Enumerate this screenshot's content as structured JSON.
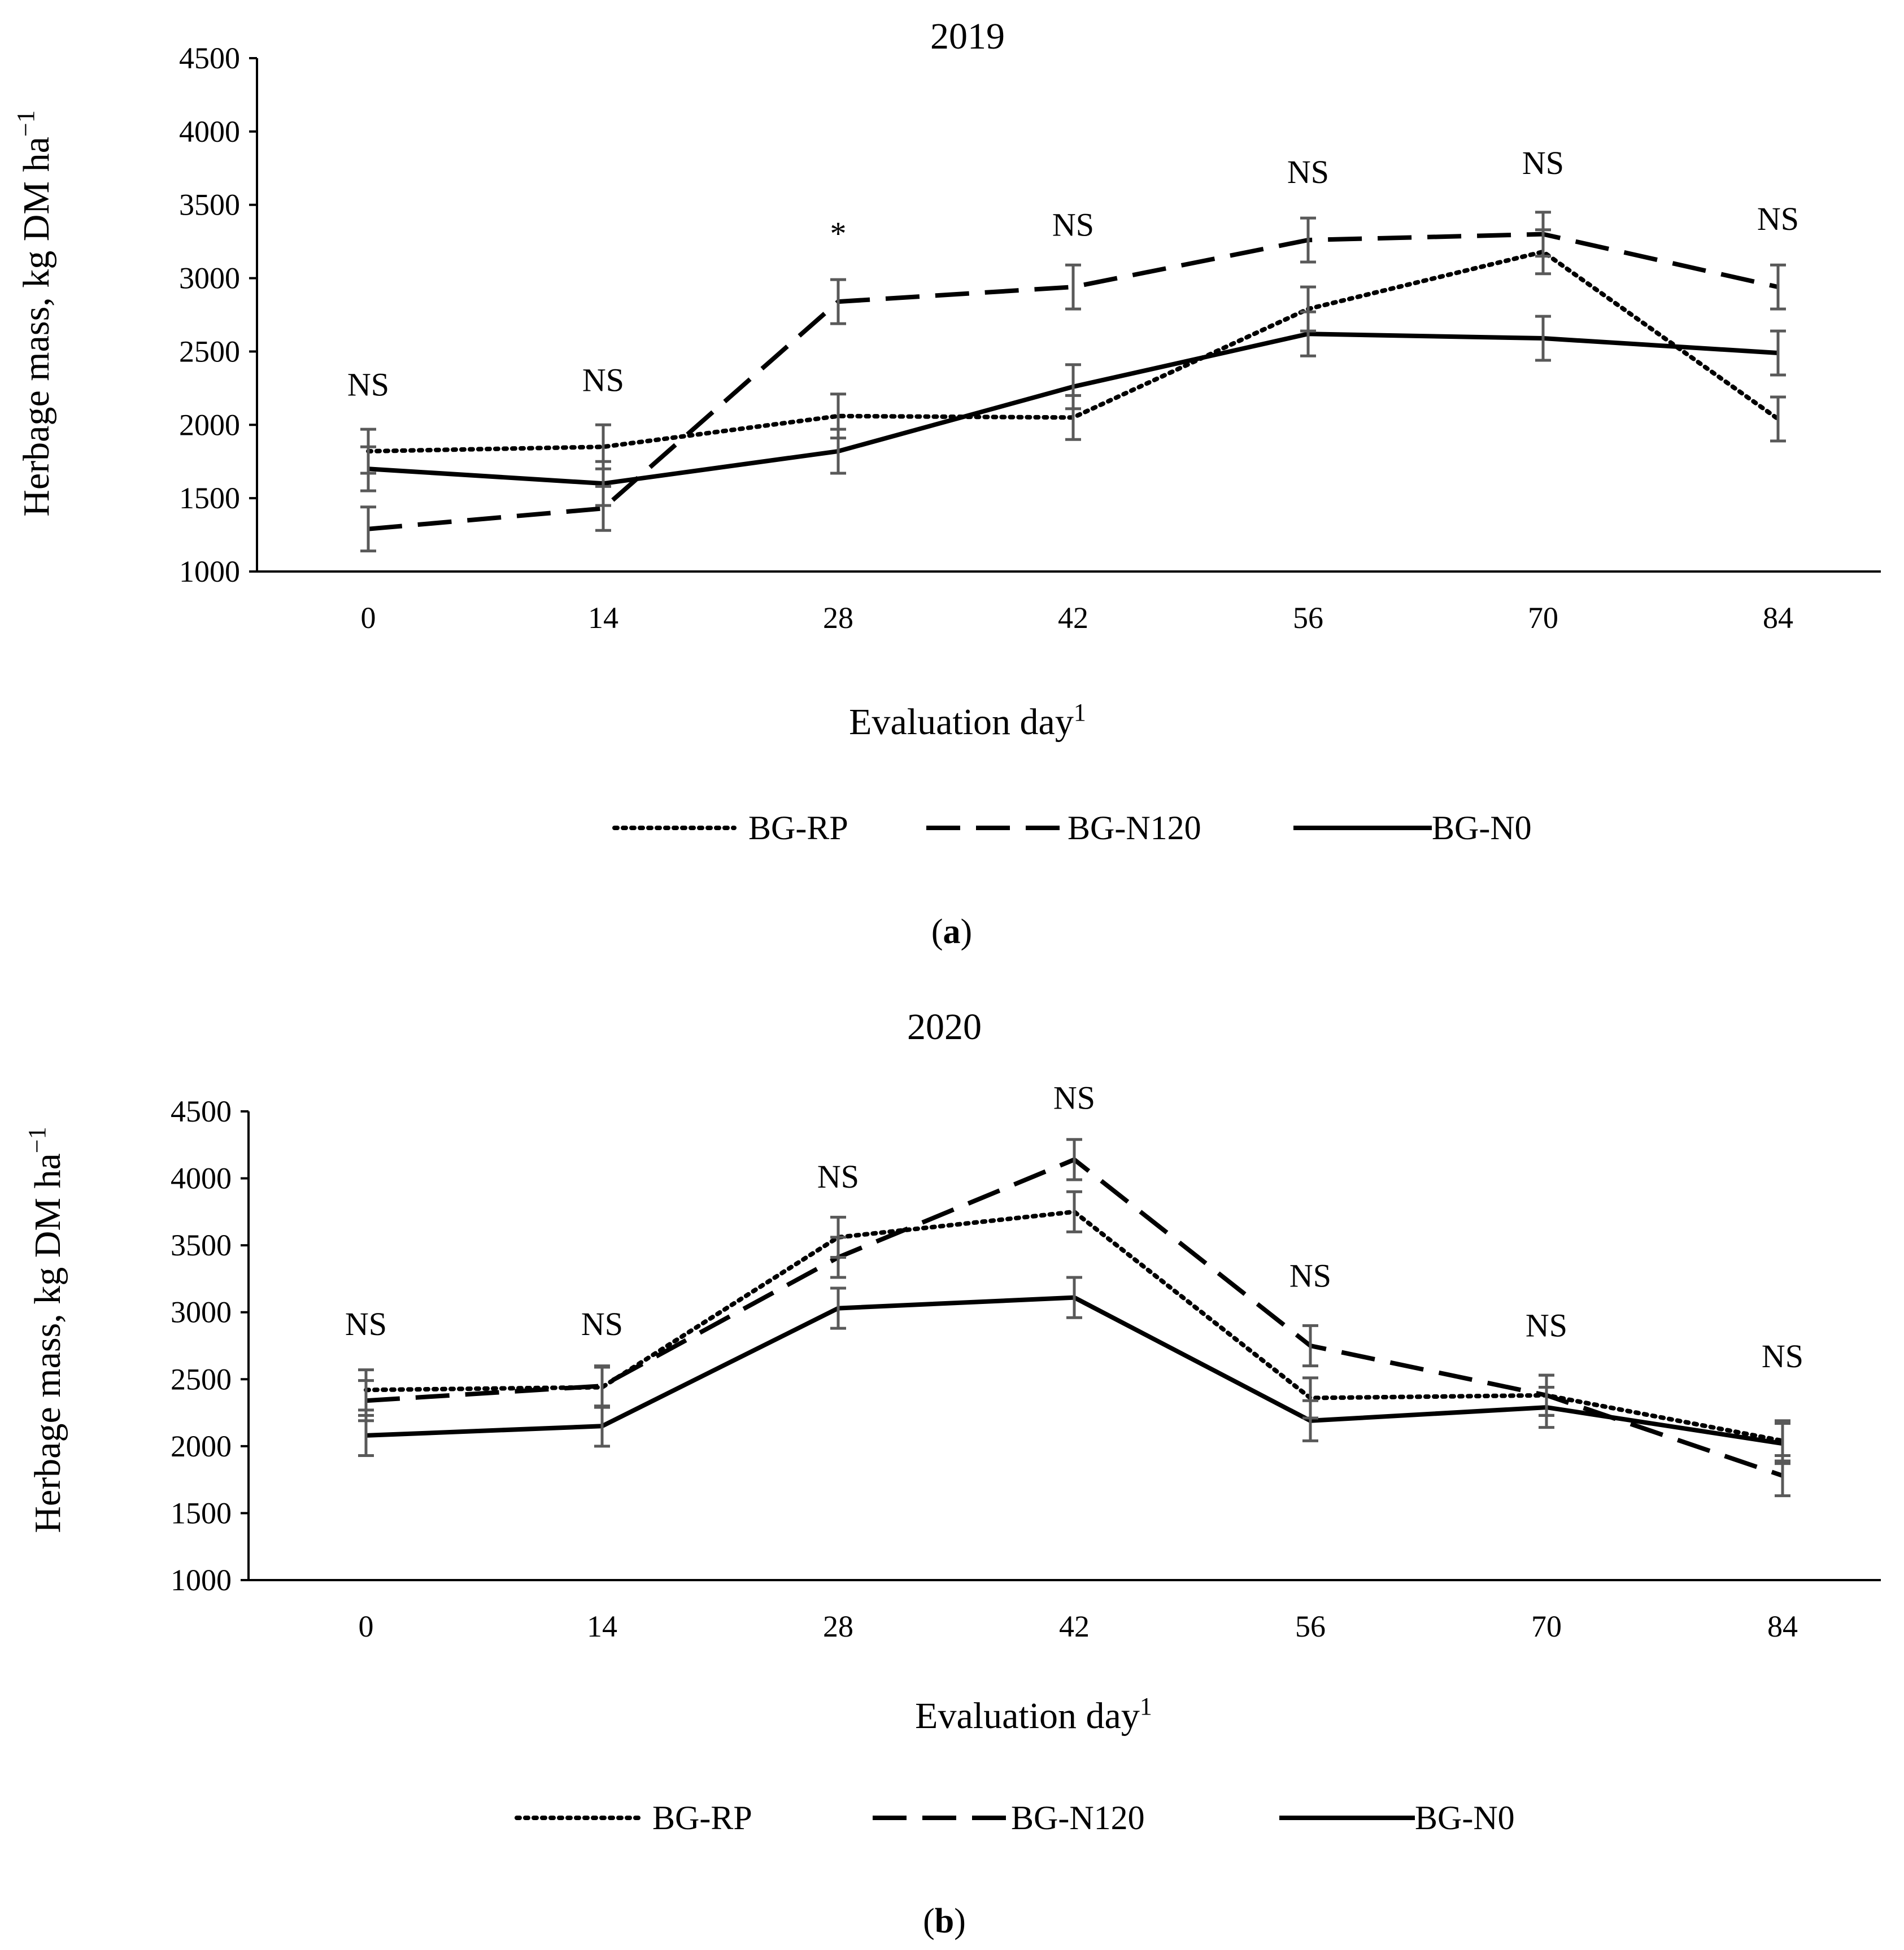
{
  "figure": {
    "panels": [
      {
        "label_open": "(",
        "label_letter": "a",
        "label_close": ")"
      },
      {
        "label_open": "(",
        "label_letter": "b",
        "label_close": ")"
      }
    ]
  },
  "chart_data": [
    {
      "type": "line",
      "title": "2019",
      "xlabel": "Evaluation day",
      "xlabel_sup": "1",
      "ylabel": "Herbage mass, kg DM ha",
      "ylabel_sup": "−1",
      "categories": [
        "0",
        "14",
        "28",
        "42",
        "56",
        "70",
        "84"
      ],
      "ylim": [
        1000,
        4500
      ],
      "yticks": [
        1000,
        1500,
        2000,
        2500,
        3000,
        3500,
        4000,
        4500
      ],
      "series": [
        {
          "name": "BG-RP",
          "style": "dotted",
          "values": [
            1820,
            1850,
            2060,
            2050,
            2790,
            3180,
            2040
          ],
          "errors": [
            150,
            150,
            150,
            150,
            150,
            150,
            150
          ]
        },
        {
          "name": "BG-N120",
          "style": "dashed",
          "values": [
            1290,
            1430,
            2840,
            2940,
            3260,
            3300,
            2940
          ],
          "errors": [
            150,
            150,
            150,
            150,
            150,
            150,
            150
          ]
        },
        {
          "name": "BG-N0",
          "style": "solid",
          "values": [
            1700,
            1600,
            1820,
            2260,
            2620,
            2590,
            2490
          ],
          "errors": [
            150,
            150,
            150,
            150,
            150,
            150,
            150
          ]
        }
      ],
      "annotations": [
        "NS",
        "NS",
        "*",
        "NS",
        "NS",
        "NS",
        "NS"
      ],
      "annotation_y": [
        2200,
        2230,
        3230,
        3290,
        3650,
        3710,
        3330
      ],
      "error_bar_color": "#595959",
      "legend_position": "bottom"
    },
    {
      "type": "line",
      "title": "2020",
      "xlabel": "Evaluation day",
      "xlabel_sup": "1",
      "ylabel": "Herbage mass, kg DM ha",
      "ylabel_sup": "−1",
      "categories": [
        "0",
        "14",
        "28",
        "42",
        "56",
        "70",
        "84"
      ],
      "ylim": [
        1000,
        4500
      ],
      "yticks": [
        1000,
        1500,
        2000,
        2500,
        3000,
        3500,
        4000,
        4500
      ],
      "series": [
        {
          "name": "BG-RP",
          "style": "dotted",
          "values": [
            2420,
            2440,
            3560,
            3750,
            2360,
            2380,
            2040
          ],
          "errors": [
            150,
            150,
            150,
            150,
            150,
            150,
            150
          ]
        },
        {
          "name": "BG-N120",
          "style": "dashed",
          "values": [
            2340,
            2450,
            3410,
            4140,
            2750,
            2380,
            1780
          ],
          "errors": [
            150,
            150,
            150,
            150,
            150,
            150,
            150
          ]
        },
        {
          "name": "BG-N0",
          "style": "solid",
          "values": [
            2080,
            2150,
            3030,
            3110,
            2190,
            2290,
            2020
          ],
          "errors": [
            150,
            150,
            150,
            150,
            150,
            150,
            150
          ]
        }
      ],
      "annotations": [
        "NS",
        "NS",
        "NS",
        "NS",
        "NS",
        "NS",
        "NS"
      ],
      "annotation_y": [
        2830,
        2830,
        3930,
        4520,
        3190,
        2820,
        2590
      ],
      "error_bar_color": "#595959",
      "legend_position": "bottom"
    }
  ]
}
